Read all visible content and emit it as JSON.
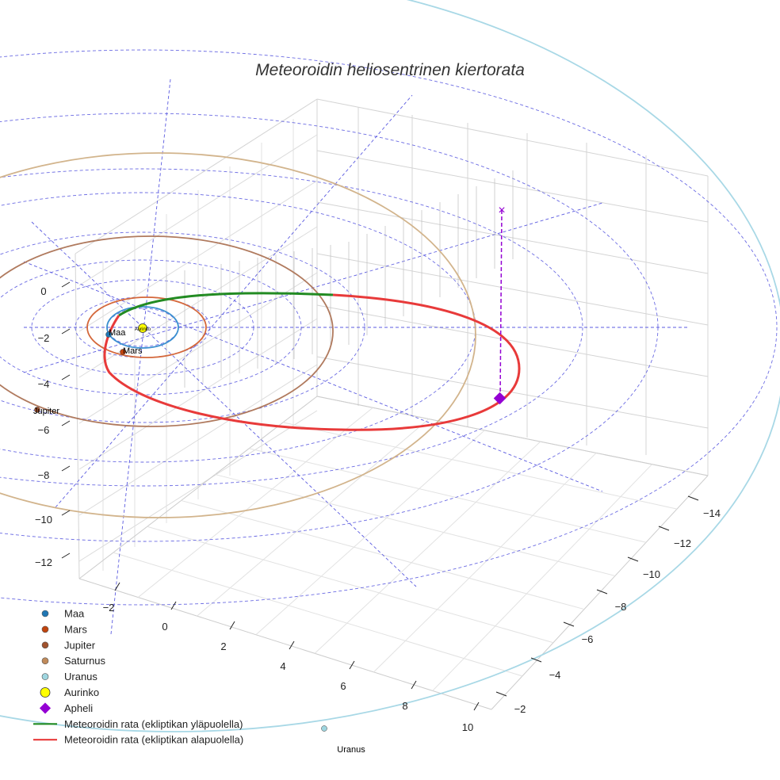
{
  "chart_data": {
    "type": "scatter3d",
    "title": "Meteoroidin heliosentrinen kiertorata",
    "axes": {
      "y_ticks": [
        "0",
        "−2",
        "−4",
        "−6",
        "−8",
        "−10",
        "−12"
      ],
      "x_ticks": [
        "−2",
        "0",
        "2",
        "4",
        "6",
        "8",
        "10"
      ],
      "z_ticks": [
        "−14",
        "−12",
        "−10",
        "−8",
        "−6",
        "−4",
        "−2"
      ]
    },
    "bodies": [
      {
        "name": "Maa",
        "color": "#1f77b4",
        "orbit_color": "#3a8fd0",
        "label": "Maa"
      },
      {
        "name": "Mars",
        "color": "#c1440e",
        "orbit_color": "#d4673a",
        "label": "Mars"
      },
      {
        "name": "Jupiter",
        "color": "#a0522d",
        "orbit_color": "#b07a5e",
        "label": "Jupiter"
      },
      {
        "name": "Saturnus",
        "color": "#c08a5a",
        "orbit_color": "#d2b48c"
      },
      {
        "name": "Uranus",
        "color": "#9fd6e0",
        "orbit_color": "#a8d8e6",
        "label": "Uranus"
      }
    ],
    "sun": {
      "name": "Aurinko",
      "color": "#ffff00",
      "label": "Aurinko"
    },
    "aphelion": {
      "name": "Apheli",
      "color": "#9400d3"
    },
    "meteoroid_orbit": {
      "above_ecliptic": {
        "name": "Meteoroidin rata (ekliptikan yläpuolella)",
        "color": "#228b22"
      },
      "below_ecliptic": {
        "name": "Meteoroidin rata (ekliptikan alapuolella)",
        "color": "#e83a3a"
      }
    },
    "legend": [
      {
        "name": "Maa",
        "symbol": "dot",
        "color": "#1f77b4"
      },
      {
        "name": "Mars",
        "symbol": "dot",
        "color": "#c1440e"
      },
      {
        "name": "Jupiter",
        "symbol": "dot",
        "color": "#a0522d"
      },
      {
        "name": "Saturnus",
        "symbol": "dot",
        "color": "#c08a5a"
      },
      {
        "name": "Uranus",
        "symbol": "dot",
        "color": "#9fd6e0"
      },
      {
        "name": "Aurinko",
        "symbol": "bigdot",
        "color": "#ffff00"
      },
      {
        "name": "Apheli",
        "symbol": "diamond",
        "color": "#9400d3"
      },
      {
        "name": "Meteoroidin rata (ekliptikan yläpuolella)",
        "symbol": "line",
        "color": "#228b22"
      },
      {
        "name": "Meteoroidin rata (ekliptikan alapuolella)",
        "symbol": "line",
        "color": "#e83a3a"
      }
    ]
  }
}
